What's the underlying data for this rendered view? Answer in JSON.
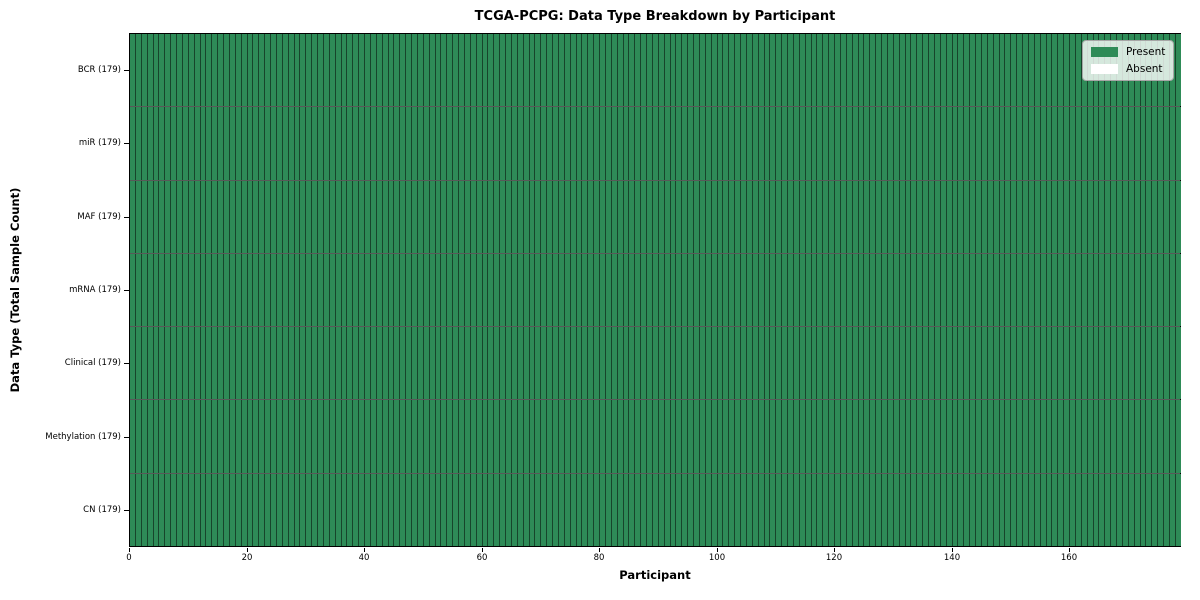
{
  "chart_data": {
    "type": "heatmap",
    "title": "TCGA-PCPG: Data Type Breakdown by Participant",
    "xlabel": "Participant",
    "ylabel": "Data Type (Total Sample Count)",
    "x_range": [
      0,
      179
    ],
    "x_ticks": [
      0,
      20,
      40,
      60,
      80,
      100,
      120,
      140,
      160
    ],
    "n_participants": 179,
    "rows": [
      {
        "label": "BCR (179)",
        "data_type": "BCR",
        "total_samples": 179,
        "present": 179,
        "absent": 0
      },
      {
        "label": "miR (179)",
        "data_type": "miR",
        "total_samples": 179,
        "present": 179,
        "absent": 0
      },
      {
        "label": "MAF (179)",
        "data_type": "MAF",
        "total_samples": 179,
        "present": 179,
        "absent": 0
      },
      {
        "label": "mRNA (179)",
        "data_type": "mRNA",
        "total_samples": 179,
        "present": 179,
        "absent": 0
      },
      {
        "label": "Clinical (179)",
        "data_type": "Clinical",
        "total_samples": 179,
        "present": 179,
        "absent": 0
      },
      {
        "label": "Methylation (179)",
        "data_type": "Methylation",
        "total_samples": 179,
        "present": 179,
        "absent": 0
      },
      {
        "label": "CN (179)",
        "data_type": "CN",
        "total_samples": 179,
        "present": 179,
        "absent": 0
      }
    ],
    "legend": {
      "position": "upper right",
      "entries": [
        {
          "label": "Present",
          "color": "#2e8b57"
        },
        {
          "label": "Absent",
          "color": "#ffffff"
        }
      ]
    },
    "colors": {
      "present": "#2e8b57",
      "absent": "#ffffff",
      "cell_edge": "rgba(0,0,0,0.5)",
      "row_separator": "rgba(0,0,0,0.65)",
      "frame": "#000000"
    }
  }
}
